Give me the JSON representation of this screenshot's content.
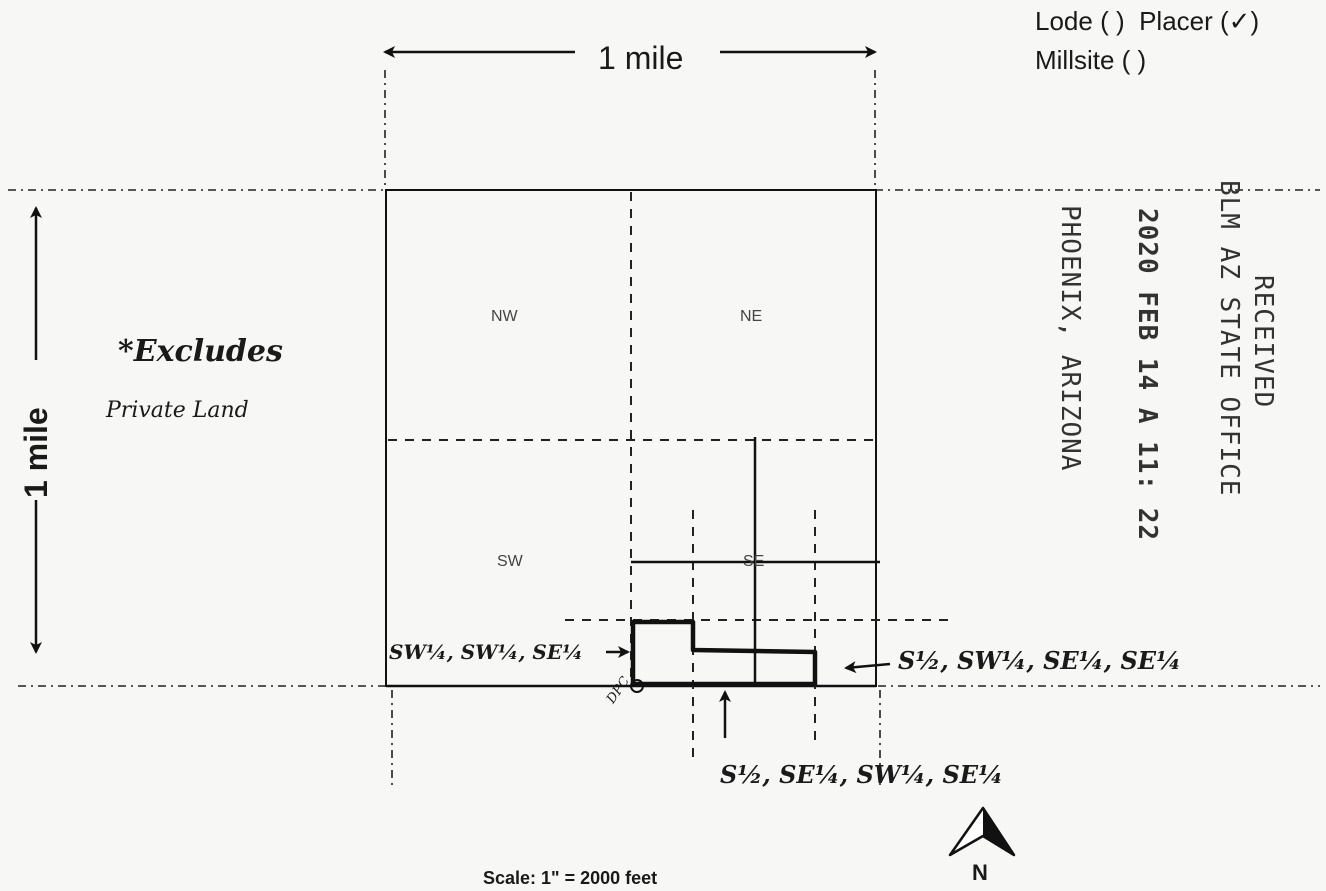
{
  "claim_type": {
    "lode": "Lode ( )",
    "placer_prefix": "Placer (",
    "placer_mark": "✓",
    "placer_suffix": ")",
    "millsite": "Millsite ( )"
  },
  "scale_horizontal": "1 mile",
  "scale_vertical": "1 mile",
  "quarters": [
    "NW",
    "NE",
    "SW",
    "SE"
  ],
  "note_line1": "*Excludes",
  "note_line2": "Private Land",
  "stamp": {
    "line1": "RECEIVED",
    "line2": "BLM AZ STATE OFFICE",
    "line3": "2020 FEB 14 A 11: 22",
    "line4": "PHOENIX, ARIZONA"
  },
  "parcel_labels": {
    "left": "SW¼, SW¼, SE¼",
    "right": "S½, SW¼, SE¼, SE¼",
    "bottom": "S½, SE¼, SW¼, SE¼",
    "corner": "DPC"
  },
  "north": "N",
  "scale_text": "Scale:  1\" = 2000 feet"
}
